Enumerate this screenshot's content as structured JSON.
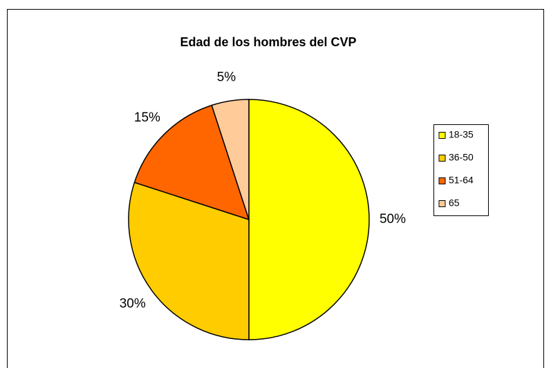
{
  "chart_data": {
    "type": "pie",
    "title": "Edad de los hombres del CVP",
    "categories": [
      "18-35",
      "36-50",
      "51-64",
      "65"
    ],
    "values": [
      50,
      30,
      15,
      5
    ],
    "value_labels": [
      "50%",
      "30%",
      "15%",
      "5%"
    ],
    "colors": [
      "#FFFF00",
      "#FFCC00",
      "#FF6600",
      "#FFCC99"
    ],
    "legend": "right"
  }
}
